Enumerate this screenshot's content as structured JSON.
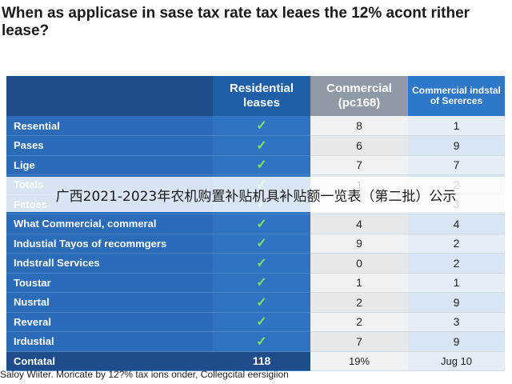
{
  "title": "When as applicase in sase tax rate tax leaes the 12% acont rither lease?",
  "headers": [
    "",
    "Residential leases",
    "Conmercial (pc168)",
    "Commercial indstal of Sererces"
  ],
  "check_glyph": "✓",
  "rows": [
    {
      "name": "Resential",
      "residential": "check",
      "c1": "8",
      "c2": "1"
    },
    {
      "name": "Pases",
      "residential": "check",
      "c1": "6",
      "c2": "9"
    },
    {
      "name": "Lige",
      "residential": "check",
      "c1": "7",
      "c2": "7"
    },
    {
      "name": "Totals",
      "residential": "check",
      "c1": "1",
      "c2": "2"
    },
    {
      "name": "Fatoes",
      "residential": "check",
      "c1": "",
      "c2": "3"
    },
    {
      "name": "What Commercial, commeral",
      "residential": "check",
      "c1": "4",
      "c2": "4"
    },
    {
      "name": "Industial Tayos of recommgers",
      "residential": "check",
      "c1": "9",
      "c2": "2"
    },
    {
      "name": "Indstrall Services",
      "residential": "check",
      "c1": "0",
      "c2": "2"
    },
    {
      "name": "Toustar",
      "residential": "check",
      "c1": "1",
      "c2": "1"
    },
    {
      "name": "Nusrtal",
      "residential": "check",
      "c1": "2",
      "c2": "9"
    },
    {
      "name": "Reveral",
      "residential": "check",
      "c1": "2",
      "c2": "3"
    },
    {
      "name": "Irdustial",
      "residential": "check",
      "c1": "7",
      "c2": "9"
    }
  ],
  "total_row": {
    "name": "Contatal",
    "residential": "118",
    "c1": "19%",
    "c2": "Jug 10"
  },
  "overlay_text": "广西2021-2023年农机购置补贴机具补贴额一览表（第二批）公示",
  "footnote": "Saloy Wiiter. Moricate by 12?% tax ions onder, Collegcital eersigiion",
  "colors": {
    "header_dark": "#1f4d8c",
    "header_blue": "#1f5fa8",
    "header_gray": "#8f9aa6",
    "row_blue": "#2b6cb8",
    "check_green": "#7fe06b"
  }
}
